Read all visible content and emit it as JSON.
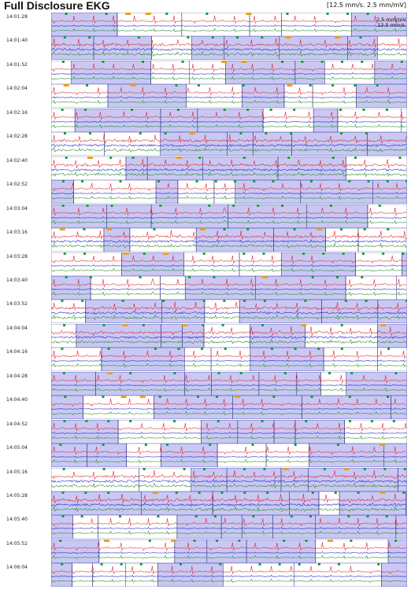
{
  "header": {
    "title": "Full Disclosure EKG",
    "speed_label": "[12.5 mm/s.   2.5 mm/mV]"
  },
  "strip_legend": {
    "gain": "2.5 mm/mV",
    "speed": "12.5 mm/s."
  },
  "colors": {
    "lead_upper": "#e02020",
    "lead_middle": "#1a1acc",
    "lead_lower": "#208a20",
    "highlight_fill": "#c8c8f4",
    "marker_green": "#1a9a3a",
    "marker_orange": "#e8a020"
  },
  "chart_data": {
    "type": "ekg-strips",
    "title": "Full Disclosure EKG",
    "paper_speed": "12.5 mm/s.",
    "gain": "2.5 mm/mV",
    "rows": [
      {
        "time": "14:01:28"
      },
      {
        "time": "14:01:40"
      },
      {
        "time": "14:01:52"
      },
      {
        "time": "14:02:04"
      },
      {
        "time": "14:02:16"
      },
      {
        "time": "14:02:28"
      },
      {
        "time": "14:02:40"
      },
      {
        "time": "14:02:52"
      },
      {
        "time": "14:03:04"
      },
      {
        "time": "14:03:16"
      },
      {
        "time": "14:03:28"
      },
      {
        "time": "14:03:40"
      },
      {
        "time": "14:03:52"
      },
      {
        "time": "14:04:04"
      },
      {
        "time": "14:04:16"
      },
      {
        "time": "14:04:28"
      },
      {
        "time": "14:04:40"
      },
      {
        "time": "14:04:52"
      },
      {
        "time": "14:05:04"
      },
      {
        "time": "14:05:16"
      },
      {
        "time": "14:05:28"
      },
      {
        "time": "14:05:40"
      },
      {
        "time": "14:05:52"
      },
      {
        "time": "14:06:04"
      }
    ]
  }
}
